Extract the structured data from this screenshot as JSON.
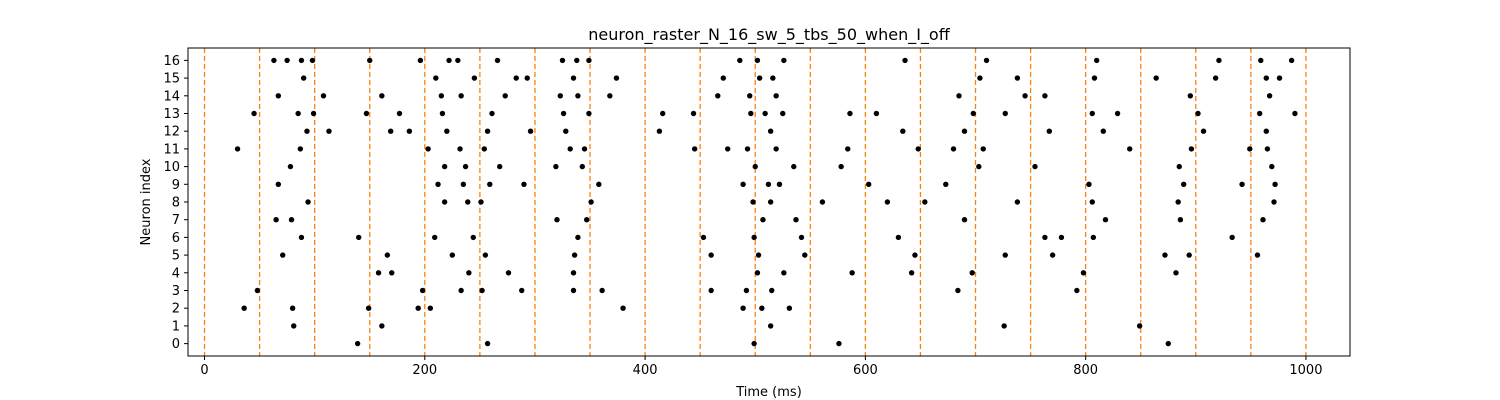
{
  "chart_data": {
    "type": "scatter",
    "title": "neuron_raster_N_16_sw_5_tbs_50_when_I_off",
    "xlabel": "Time (ms)",
    "ylabel": "Neuron index",
    "xlim": [
      -15,
      1040
    ],
    "ylim": [
      -0.7,
      16.7
    ],
    "xticks": [
      0,
      200,
      400,
      600,
      800,
      1000
    ],
    "yticks": [
      0,
      1,
      2,
      3,
      4,
      5,
      6,
      7,
      8,
      9,
      10,
      11,
      12,
      13,
      14,
      15,
      16
    ],
    "grid": false,
    "legend": "none",
    "colors": {
      "spike": "#000000",
      "stim_line": "#ff7f0e",
      "axis": "#000000"
    },
    "stimulus_times": [
      0,
      50,
      100,
      150,
      200,
      250,
      300,
      350,
      400,
      450,
      500,
      550,
      600,
      650,
      700,
      750,
      800,
      850,
      900,
      950,
      1000
    ],
    "series": [
      {
        "values": [
          [
            63,
            16
          ],
          [
            75,
            16
          ],
          [
            88,
            16
          ],
          [
            98,
            16
          ],
          [
            150,
            16
          ],
          [
            196,
            16
          ],
          [
            222,
            16
          ],
          [
            230,
            16
          ],
          [
            266,
            16
          ],
          [
            325,
            16
          ],
          [
            338,
            16
          ],
          [
            349,
            16
          ],
          [
            486,
            16
          ],
          [
            502,
            16
          ],
          [
            526,
            16
          ],
          [
            636,
            16
          ],
          [
            710,
            16
          ],
          [
            810,
            16
          ],
          [
            921,
            16
          ],
          [
            959,
            16
          ],
          [
            987,
            16
          ],
          [
            90,
            15
          ],
          [
            210,
            15
          ],
          [
            245,
            15
          ],
          [
            283,
            15
          ],
          [
            293,
            15
          ],
          [
            335,
            15
          ],
          [
            374,
            15
          ],
          [
            471,
            15
          ],
          [
            504,
            15
          ],
          [
            516,
            15
          ],
          [
            704,
            15
          ],
          [
            738,
            15
          ],
          [
            808,
            15
          ],
          [
            864,
            15
          ],
          [
            918,
            15
          ],
          [
            964,
            15
          ],
          [
            976,
            15
          ],
          [
            67,
            14
          ],
          [
            108,
            14
          ],
          [
            161,
            14
          ],
          [
            215,
            14
          ],
          [
            233,
            14
          ],
          [
            273,
            14
          ],
          [
            323,
            14
          ],
          [
            339,
            14
          ],
          [
            368,
            14
          ],
          [
            466,
            14
          ],
          [
            495,
            14
          ],
          [
            519,
            14
          ],
          [
            685,
            14
          ],
          [
            745,
            14
          ],
          [
            763,
            14
          ],
          [
            895,
            14
          ],
          [
            967,
            14
          ],
          [
            45,
            13
          ],
          [
            85,
            13
          ],
          [
            99,
            13
          ],
          [
            147,
            13
          ],
          [
            177,
            13
          ],
          [
            216,
            13
          ],
          [
            261,
            13
          ],
          [
            326,
            13
          ],
          [
            349,
            13
          ],
          [
            416,
            13
          ],
          [
            444,
            13
          ],
          [
            496,
            13
          ],
          [
            509,
            13
          ],
          [
            525,
            13
          ],
          [
            586,
            13
          ],
          [
            610,
            13
          ],
          [
            698,
            13
          ],
          [
            727,
            13
          ],
          [
            806,
            13
          ],
          [
            829,
            13
          ],
          [
            902,
            13
          ],
          [
            958,
            13
          ],
          [
            990,
            13
          ],
          [
            93,
            12
          ],
          [
            113,
            12
          ],
          [
            169,
            12
          ],
          [
            186,
            12
          ],
          [
            220,
            12
          ],
          [
            257,
            12
          ],
          [
            296,
            12
          ],
          [
            328,
            12
          ],
          [
            413,
            12
          ],
          [
            514,
            12
          ],
          [
            634,
            12
          ],
          [
            690,
            12
          ],
          [
            767,
            12
          ],
          [
            816,
            12
          ],
          [
            907,
            12
          ],
          [
            964,
            12
          ],
          [
            30,
            11
          ],
          [
            87,
            11
          ],
          [
            203,
            11
          ],
          [
            232,
            11
          ],
          [
            254,
            11
          ],
          [
            332,
            11
          ],
          [
            345,
            11
          ],
          [
            445,
            11
          ],
          [
            475,
            11
          ],
          [
            493,
            11
          ],
          [
            519,
            11
          ],
          [
            584,
            11
          ],
          [
            648,
            11
          ],
          [
            680,
            11
          ],
          [
            707,
            11
          ],
          [
            840,
            11
          ],
          [
            896,
            11
          ],
          [
            949,
            11
          ],
          [
            965,
            11
          ],
          [
            78,
            10
          ],
          [
            218,
            10
          ],
          [
            237,
            10
          ],
          [
            268,
            10
          ],
          [
            319,
            10
          ],
          [
            343,
            10
          ],
          [
            500,
            10
          ],
          [
            535,
            10
          ],
          [
            578,
            10
          ],
          [
            703,
            10
          ],
          [
            754,
            10
          ],
          [
            885,
            10
          ],
          [
            969,
            10
          ],
          [
            67,
            9
          ],
          [
            212,
            9
          ],
          [
            235,
            9
          ],
          [
            259,
            9
          ],
          [
            290,
            9
          ],
          [
            358,
            9
          ],
          [
            489,
            9
          ],
          [
            512,
            9
          ],
          [
            522,
            9
          ],
          [
            603,
            9
          ],
          [
            673,
            9
          ],
          [
            803,
            9
          ],
          [
            889,
            9
          ],
          [
            942,
            9
          ],
          [
            972,
            9
          ],
          [
            94,
            8
          ],
          [
            218,
            8
          ],
          [
            239,
            8
          ],
          [
            251,
            8
          ],
          [
            351,
            8
          ],
          [
            498,
            8
          ],
          [
            514,
            8
          ],
          [
            561,
            8
          ],
          [
            620,
            8
          ],
          [
            654,
            8
          ],
          [
            738,
            8
          ],
          [
            806,
            8
          ],
          [
            884,
            8
          ],
          [
            971,
            8
          ],
          [
            65,
            7
          ],
          [
            79,
            7
          ],
          [
            320,
            7
          ],
          [
            347,
            7
          ],
          [
            507,
            7
          ],
          [
            537,
            7
          ],
          [
            690,
            7
          ],
          [
            818,
            7
          ],
          [
            886,
            7
          ],
          [
            961,
            7
          ],
          [
            88,
            6
          ],
          [
            140,
            6
          ],
          [
            209,
            6
          ],
          [
            244,
            6
          ],
          [
            339,
            6
          ],
          [
            453,
            6
          ],
          [
            499,
            6
          ],
          [
            542,
            6
          ],
          [
            630,
            6
          ],
          [
            763,
            6
          ],
          [
            778,
            6
          ],
          [
            807,
            6
          ],
          [
            933,
            6
          ],
          [
            71,
            5
          ],
          [
            166,
            5
          ],
          [
            225,
            5
          ],
          [
            255,
            5
          ],
          [
            336,
            5
          ],
          [
            460,
            5
          ],
          [
            503,
            5
          ],
          [
            545,
            5
          ],
          [
            645,
            5
          ],
          [
            727,
            5
          ],
          [
            770,
            5
          ],
          [
            872,
            5
          ],
          [
            894,
            5
          ],
          [
            956,
            5
          ],
          [
            158,
            4
          ],
          [
            170,
            4
          ],
          [
            240,
            4
          ],
          [
            276,
            4
          ],
          [
            335,
            4
          ],
          [
            502,
            4
          ],
          [
            526,
            4
          ],
          [
            588,
            4
          ],
          [
            642,
            4
          ],
          [
            697,
            4
          ],
          [
            798,
            4
          ],
          [
            882,
            4
          ],
          [
            48,
            3
          ],
          [
            198,
            3
          ],
          [
            233,
            3
          ],
          [
            252,
            3
          ],
          [
            288,
            3
          ],
          [
            335,
            3
          ],
          [
            361,
            3
          ],
          [
            460,
            3
          ],
          [
            492,
            3
          ],
          [
            515,
            3
          ],
          [
            684,
            3
          ],
          [
            792,
            3
          ],
          [
            36,
            2
          ],
          [
            80,
            2
          ],
          [
            149,
            2
          ],
          [
            194,
            2
          ],
          [
            205,
            2
          ],
          [
            380,
            2
          ],
          [
            489,
            2
          ],
          [
            506,
            2
          ],
          [
            531,
            2
          ],
          [
            81,
            1
          ],
          [
            161,
            1
          ],
          [
            514,
            1
          ],
          [
            726,
            1
          ],
          [
            849,
            1
          ],
          [
            139,
            0
          ],
          [
            257,
            0
          ],
          [
            499,
            0
          ],
          [
            576,
            0
          ],
          [
            875,
            0
          ]
        ]
      }
    ]
  }
}
